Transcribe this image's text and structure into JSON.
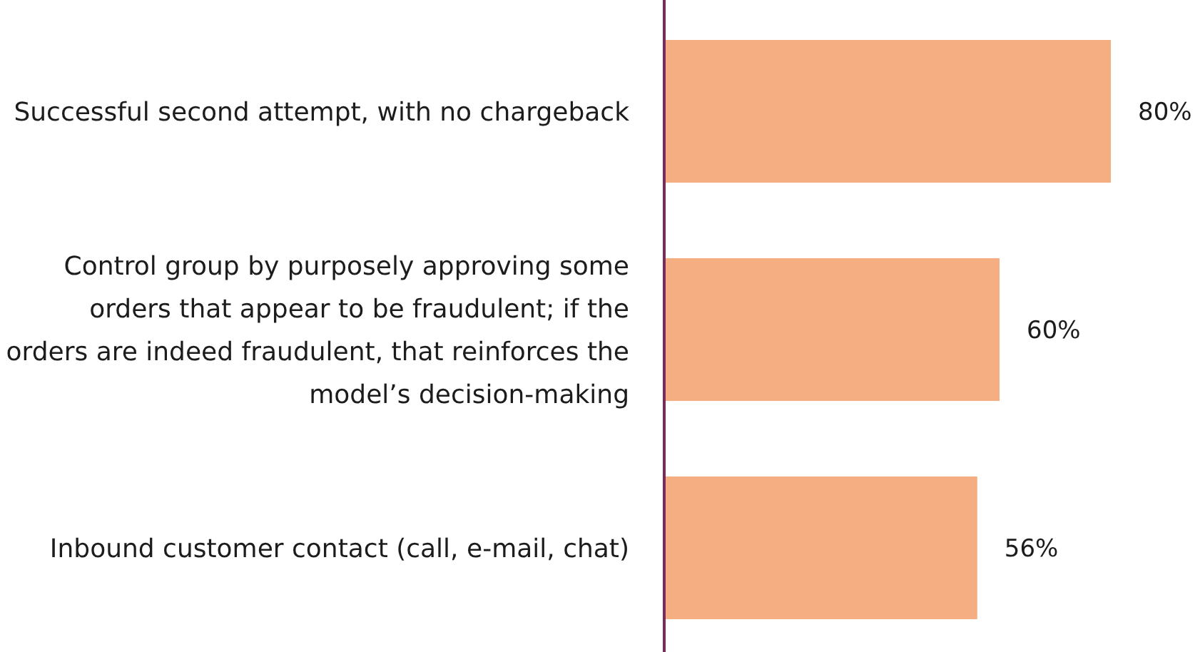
{
  "chart_data": {
    "type": "bar",
    "orientation": "horizontal",
    "categories": [
      "Successful second attempt, with no chargeback",
      "Control group by purposely approving some orders that appear to be fraudulent; if the orders are indeed fraudulent, that reinforces the model’s decision-making",
      "Inbound customer contact (call, e-mail, chat)"
    ],
    "values": [
      80,
      60,
      56
    ],
    "value_labels": [
      "80%",
      "60%",
      "56%"
    ],
    "color": "#f5ae82",
    "tick_labels": "y"
  }
}
